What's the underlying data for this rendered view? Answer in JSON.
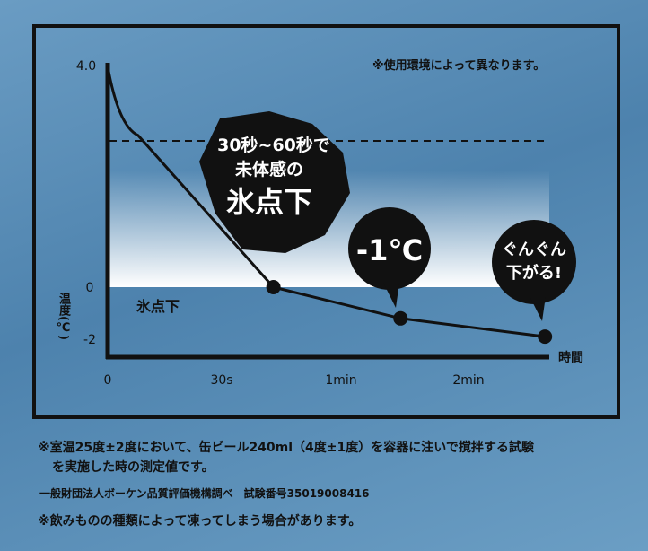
{
  "chart_data": {
    "type": "line",
    "title": "",
    "ylabel": "温度(℃)",
    "xlabel": "時間",
    "x_ticks": [
      "0",
      "30s",
      "1min",
      "2min"
    ],
    "y_ticks": [
      "4.0",
      "0",
      "-2"
    ],
    "x_unit": "seconds",
    "series": [
      {
        "x": [
          0,
          8,
          43,
          88,
          156
        ],
        "y": [
          4.0,
          2.75,
          0,
          -1.2,
          -1.9
        ]
      }
    ],
    "markers": [
      {
        "x": 43,
        "y": 0
      },
      {
        "x": 88,
        "y": -1.2
      },
      {
        "x": 156,
        "y": -1.9
      }
    ],
    "reference_line_dashed": true,
    "below_zero_label": "氷点下",
    "grid": false,
    "annotations": {
      "burst_line1": "30秒~60秒で",
      "burst_line2": "未体感の",
      "burst_line3": "氷点下",
      "bubble1": "-1℃",
      "bubble2_line1": "ぐんぐん",
      "bubble2_line2": "下がる!"
    },
    "colors": {
      "background": "#5f93bb",
      "line": "#111111",
      "highlight": "#ffffff"
    }
  },
  "notes": {
    "top_right": "※使用環境によって異なります。",
    "footnote1_line1": "※室温25度±2度において、缶ビール240ml（4度±1度）を容器に注いで撹拌する試験",
    "footnote1_line2": "を実施した時の測定値です。",
    "footnote2": "一般財団法人ボーケン品質評価機構調べ　試験番号35019008416",
    "footnote3": "※飲みものの種類によって凍ってしまう場合があります。"
  }
}
